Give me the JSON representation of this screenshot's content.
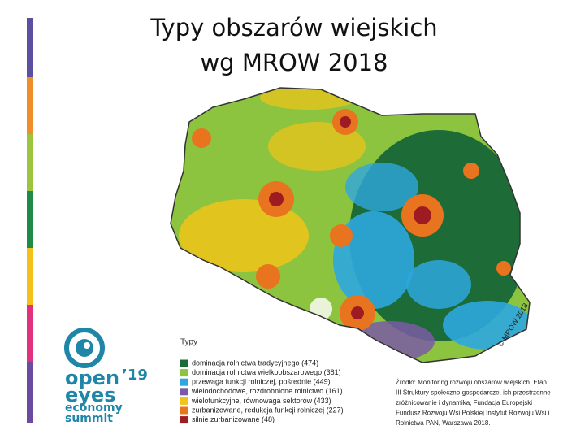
{
  "title": [
    "Typy obszarów wiejskich",
    "wg MROW 2018"
  ],
  "map": {
    "watermark": "© MROW 2018",
    "legend": {
      "title": "Typy",
      "items": [
        {
          "label": "dominacja rolnictwa tradycyjnego (474)",
          "color": "#1d6b37"
        },
        {
          "label": "dominacja rolnictwa wielkoobszarowego (381)",
          "color": "#8cc43f"
        },
        {
          "label": "przewaga funkcji rolniczej, pośrednie (449)",
          "color": "#2ea7df"
        },
        {
          "label": "wielodochodowe, rozdrobnione rolnictwo (161)",
          "color": "#7a5ca6"
        },
        {
          "label": "wielofunkcyjne, równowaga sektorów (433)",
          "color": "#f1c419"
        },
        {
          "label": "zurbanizowane, redukcja funkcji rolniczej (227)",
          "color": "#e8741f"
        },
        {
          "label": "silnie zurbanizowane (48)",
          "color": "#9c1c22"
        }
      ]
    }
  },
  "source": [
    "Źródło: Monitoring rozwoju obszarów wiejskich. Etap",
    "III Struktury społeczno-gospodarcze, ich przestrzenne",
    "zróżnicowanie i dynamika, Fundacja Europejski",
    "Fundusz Rozwoju Wsi Polskiej Instytut Rozwoju Wsi i",
    "Rolnictwa PAN, Warszawa 2018."
  ],
  "logo": {
    "line1": "open",
    "year": "’19",
    "line2": "eyes",
    "line3": "economy",
    "line4": "summit"
  }
}
